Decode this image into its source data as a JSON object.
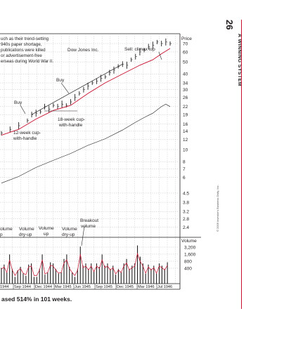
{
  "page": {
    "number": "26",
    "running_head": "A WINNING SYSTEM",
    "caption": "ased 514% in 101 weeks.",
    "copyright": "© 2009 Investor's Business Daily, Inc."
  },
  "chart": {
    "title": "Dow Jones Inc.",
    "note_lines": [
      "uch as their trend-setting",
      "940s paper shortage,",
      "publications were killed",
      "or advertisement-free",
      "erseas during World War II."
    ],
    "price_label": "Price",
    "volume_label": "Volume",
    "annotations": {
      "sell": "Sell: climax top",
      "buy_upper": "Buy",
      "buy_lower": "Buy",
      "cup18": [
        "18-week cup-",
        "with-handle"
      ],
      "cup12": [
        "12-week cup-",
        "with-handle"
      ],
      "breakout": [
        "Breakout",
        "volume"
      ],
      "vol1": [
        "olume",
        "p"
      ],
      "vol2": [
        "Volume",
        "dry-up"
      ],
      "vol3": [
        "Volume",
        "up"
      ],
      "vol4": [
        "Volume",
        "dry-up"
      ]
    },
    "colors": {
      "accent": "#c8102e",
      "ink": "#231f20",
      "grid": "#b5b5b5"
    }
  },
  "chart_data": {
    "type": "bar",
    "title": "Dow Jones Inc.",
    "y_axis": {
      "label": "Price",
      "scale": "log",
      "ticks": [
        "70",
        "60",
        "50",
        "40",
        "34",
        "30",
        "26",
        "22",
        "19",
        "16",
        "14",
        "12",
        "10",
        "8",
        "7",
        "6",
        "4.5",
        "3.8",
        "3.2",
        "2.8",
        "2.4"
      ]
    },
    "volume_axis": {
      "label": "Volume",
      "ticks": [
        "3,200",
        "1,600",
        "800",
        "400"
      ]
    },
    "x_axis": {
      "ticks": [
        "1944",
        "Sep 1944",
        "Dec 1944",
        "Mar 1945",
        "Jun 1945",
        "Sep 1945",
        "Dec 1945",
        "Mar 1946",
        "Jul 1946"
      ]
    },
    "series": [
      {
        "name": "Price",
        "points": [
          [
            0,
            13.5
          ],
          [
            4,
            14.5
          ],
          [
            8,
            15.5
          ],
          [
            12,
            17
          ],
          [
            14,
            19
          ],
          [
            16,
            19.5
          ],
          [
            18,
            20
          ],
          [
            20,
            22
          ],
          [
            22,
            21
          ],
          [
            24,
            22.5
          ],
          [
            26,
            22
          ],
          [
            28,
            23
          ],
          [
            30,
            22.5
          ],
          [
            32,
            24
          ],
          [
            34,
            26
          ],
          [
            36,
            28
          ],
          [
            38,
            30
          ],
          [
            40,
            32
          ],
          [
            42,
            34
          ],
          [
            44,
            35
          ],
          [
            46,
            37
          ],
          [
            48,
            38
          ],
          [
            50,
            41
          ],
          [
            52,
            43
          ],
          [
            54,
            46
          ],
          [
            56,
            48
          ],
          [
            58,
            47
          ],
          [
            60,
            52
          ],
          [
            62,
            55
          ],
          [
            64,
            60
          ],
          [
            66,
            62
          ],
          [
            68,
            66
          ],
          [
            70,
            68
          ],
          [
            72,
            72
          ],
          [
            74,
            70
          ],
          [
            76,
            72
          ],
          [
            78,
            70
          ]
        ]
      },
      {
        "name": "Moving average",
        "points": [
          [
            0,
            13
          ],
          [
            8,
            14.5
          ],
          [
            16,
            17.5
          ],
          [
            24,
            20.5
          ],
          [
            32,
            22.5
          ],
          [
            40,
            28
          ],
          [
            48,
            34
          ],
          [
            56,
            40
          ],
          [
            64,
            47
          ],
          [
            70,
            52
          ],
          [
            74,
            58
          ],
          [
            78,
            64
          ]
        ]
      },
      {
        "name": "Relative strength",
        "points": [
          [
            0,
            5.4
          ],
          [
            8,
            6.1
          ],
          [
            16,
            7.2
          ],
          [
            24,
            8.2
          ],
          [
            32,
            9.3
          ],
          [
            40,
            10.8
          ],
          [
            48,
            12.2
          ],
          [
            56,
            14.3
          ],
          [
            62,
            16.5
          ],
          [
            66,
            18
          ],
          [
            70,
            19.5
          ],
          [
            74,
            22
          ],
          [
            76,
            23
          ],
          [
            78,
            22
          ]
        ]
      },
      {
        "name": "Volume",
        "values": [
          1400,
          1700,
          1000,
          2600,
          1300,
          600,
          1200,
          1500,
          900,
          700,
          1700,
          1800,
          600,
          600,
          1300,
          2600,
          800,
          1000,
          1900,
          1800,
          1300,
          900,
          1000,
          2200,
          2600,
          1500,
          1000,
          600,
          1300,
          3300,
          1600,
          1800,
          1300,
          1800,
          1100,
          1800,
          1500,
          2600,
          1600,
          1800,
          1300,
          1600,
          800,
          1300,
          1000,
          1800,
          2200,
          1300,
          1600,
          1800,
          3400,
          2400,
          1800,
          900,
          1700,
          1300,
          1600,
          900,
          1800,
          1600,
          1300,
          1900
        ]
      }
    ]
  }
}
